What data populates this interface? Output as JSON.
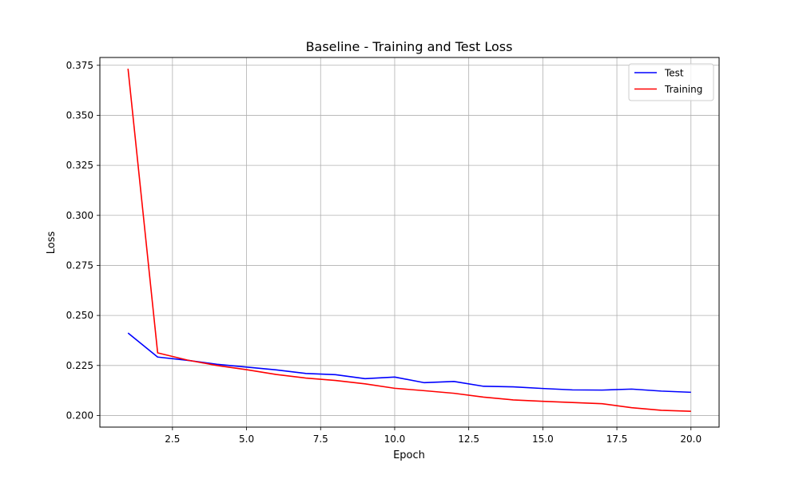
{
  "chart_data": {
    "type": "line",
    "title": "Baseline - Training and Test Loss",
    "xlabel": "Epoch",
    "ylabel": "Loss",
    "xlim": [
      0.05,
      20.95
    ],
    "ylim": [
      0.1942,
      0.3789
    ],
    "xticks": [
      2.5,
      5.0,
      7.5,
      10.0,
      12.5,
      15.0,
      17.5,
      20.0
    ],
    "xtick_labels": [
      "2.5",
      "5.0",
      "7.5",
      "10.0",
      "12.5",
      "15.0",
      "17.5",
      "20.0"
    ],
    "yticks": [
      0.2,
      0.225,
      0.25,
      0.275,
      0.3,
      0.325,
      0.35,
      0.375
    ],
    "ytick_labels": [
      "0.200",
      "0.225",
      "0.250",
      "0.275",
      "0.300",
      "0.325",
      "0.350",
      "0.375"
    ],
    "grid": true,
    "legend_position": "top-right",
    "x": [
      1,
      2,
      3,
      4,
      5,
      6,
      7,
      8,
      9,
      10,
      11,
      12,
      13,
      14,
      15,
      16,
      17,
      18,
      19,
      20
    ],
    "series": [
      {
        "name": "Test",
        "color": "#0000ff",
        "values": [
          0.2412,
          0.2292,
          0.2276,
          0.2256,
          0.2242,
          0.2228,
          0.221,
          0.2204,
          0.2184,
          0.2192,
          0.2164,
          0.217,
          0.2146,
          0.2143,
          0.2135,
          0.2128,
          0.2127,
          0.2132,
          0.2122,
          0.2116
        ]
      },
      {
        "name": "Training",
        "color": "#ff0000",
        "values": [
          0.3733,
          0.2313,
          0.2277,
          0.225,
          0.2229,
          0.2205,
          0.2187,
          0.2175,
          0.2158,
          0.2136,
          0.2124,
          0.2111,
          0.2092,
          0.2078,
          0.2071,
          0.2065,
          0.2059,
          0.2039,
          0.2026,
          0.2021
        ]
      }
    ]
  }
}
